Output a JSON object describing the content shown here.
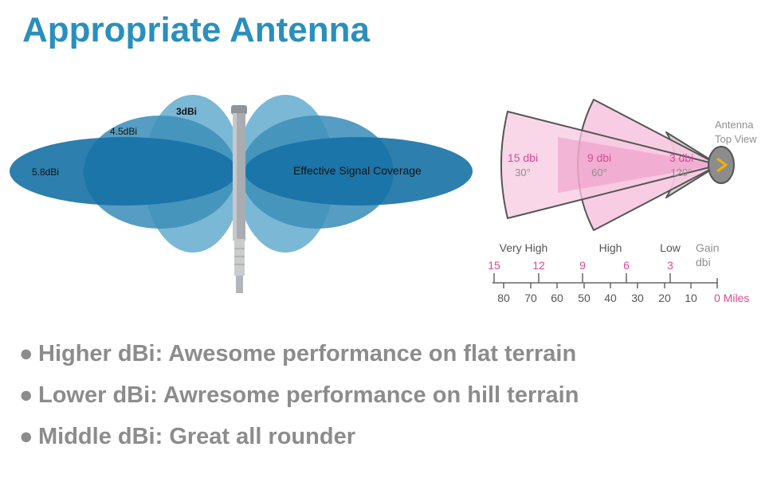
{
  "title": "Appropriate Antenna",
  "left_diagram": {
    "labels": {
      "dbi_3": "3dBi",
      "dbi_45": "4.5dBi",
      "dbi_58": "5.8dBi",
      "coverage": "Effective Signal Coverage"
    },
    "colors": {
      "dbi_3": "#7ab8d6",
      "dbi_45": "#3d8fba",
      "dbi_58": "#1671a5",
      "antenna": "#a9adb1"
    }
  },
  "right_diagram": {
    "sectors": [
      {
        "dbi": "15 dbi",
        "angle": "30°"
      },
      {
        "dbi": "9 dbi",
        "angle": "60°"
      },
      {
        "dbi": "3 dbi",
        "angle": "120°"
      }
    ],
    "antenna_label": [
      "Antenna",
      "Top View"
    ],
    "categories": [
      "Very High",
      "High",
      "Low"
    ],
    "gain_label": [
      "Gain",
      "dbi"
    ],
    "gain_ticks": [
      "15",
      "12",
      "9",
      "6",
      "3"
    ],
    "mile_ticks": [
      "80",
      "70",
      "60",
      "50",
      "40",
      "30",
      "20",
      "10",
      "0 Miles"
    ],
    "colors": {
      "sector_fill": "#f7c9e1",
      "grey_fill": "#d6d6d6",
      "pink_text": "#d94a96",
      "grey_text": "#8f8f8f",
      "beam": "#e88bbf",
      "arrow": "#f4b000"
    }
  },
  "bullets": [
    "Higher dBi: Awesome performance on flat terrain",
    "Lower dBi: Awresome performance on hill terrain",
    "Middle dBi: Great all rounder"
  ]
}
